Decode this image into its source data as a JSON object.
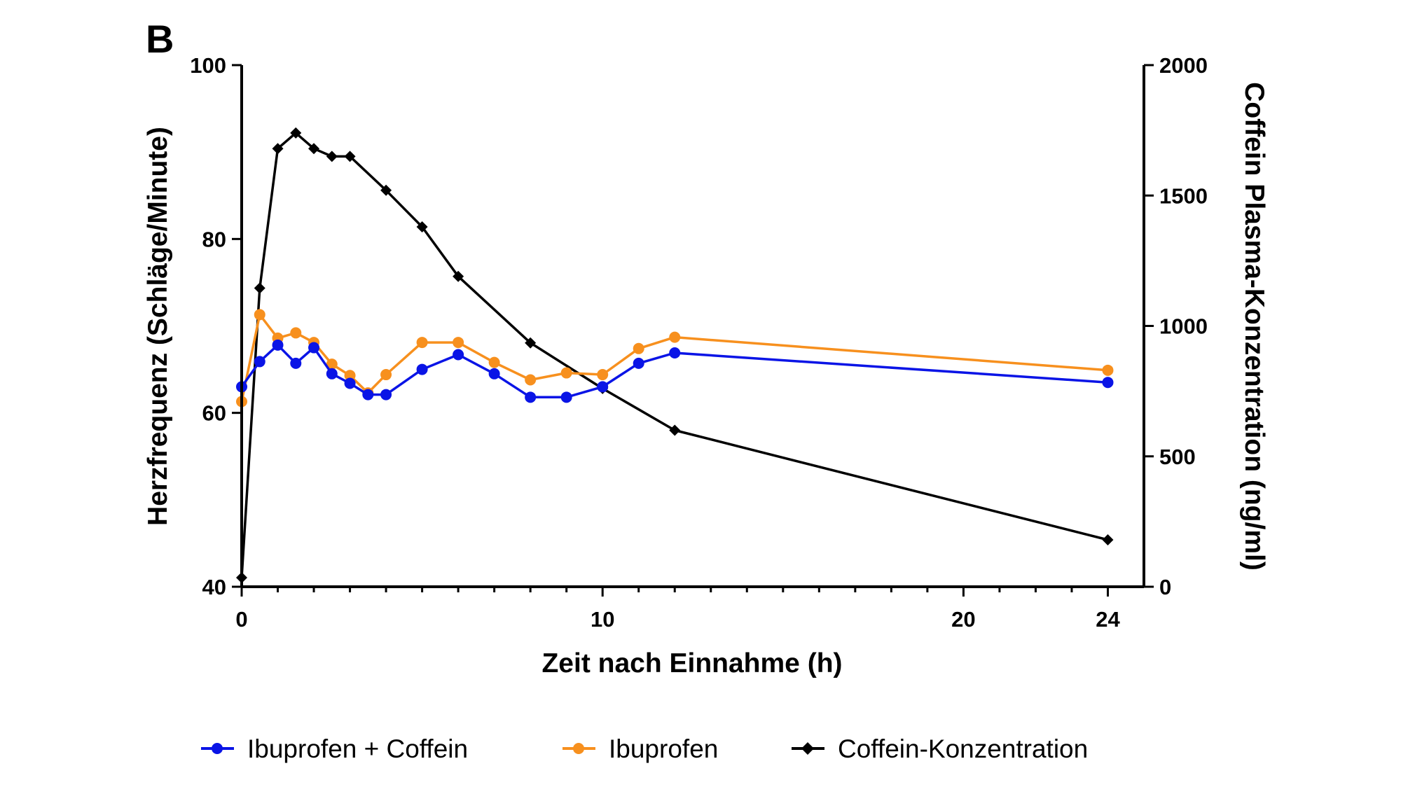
{
  "panel_label": "B",
  "legend": [
    {
      "label": "Ibuprofen + Coffein",
      "color": "#0a14e6",
      "marker": "circle"
    },
    {
      "label": "Ibuprofen",
      "color": "#f7901e",
      "marker": "circle"
    },
    {
      "label": "Coffein-Konzentration",
      "color": "#000000",
      "marker": "diamond"
    }
  ],
  "chart_data": {
    "type": "line",
    "xlabel": "Zeit nach Einnahme (h)",
    "ylabel_left": "Herzfrequenz (Schläge/Minute)",
    "ylabel_right": "Coffein Plasma-Konzentration (ng/ml)",
    "xlim": [
      0,
      25
    ],
    "ylim_left": [
      40,
      100
    ],
    "ylim_right": [
      0,
      2000
    ],
    "x_ticks": [
      0,
      10,
      20,
      24
    ],
    "x_tick_labels": [
      "0",
      "10",
      "20",
      "24"
    ],
    "y_left_ticks": [
      40,
      60,
      80,
      100
    ],
    "y_right_ticks": [
      0,
      500,
      1000,
      1500,
      2000
    ],
    "grid": false,
    "legend_position": "bottom",
    "series": [
      {
        "name": "Ibuprofen + Coffein",
        "axis": "left",
        "color": "#0a14e6",
        "marker": "circle",
        "x": [
          0,
          0.5,
          1,
          1.5,
          2,
          2.5,
          3,
          3.5,
          4,
          5,
          6,
          7,
          8,
          9,
          10,
          11,
          12,
          24
        ],
        "y": [
          63.0,
          65.9,
          67.8,
          65.7,
          67.5,
          64.5,
          63.4,
          62.1,
          62.1,
          65.0,
          66.7,
          64.5,
          61.8,
          61.8,
          63.0,
          65.7,
          66.9,
          63.5
        ]
      },
      {
        "name": "Ibuprofen",
        "axis": "left",
        "color": "#f7901e",
        "marker": "circle",
        "x": [
          0,
          0.5,
          1,
          1.5,
          2,
          2.5,
          3,
          3.5,
          4,
          5,
          6,
          7,
          8,
          9,
          10,
          11,
          12,
          24
        ],
        "y": [
          61.3,
          71.3,
          68.6,
          69.2,
          68.1,
          65.6,
          64.3,
          62.3,
          64.4,
          68.1,
          68.1,
          65.8,
          63.8,
          64.6,
          64.4,
          67.4,
          68.7,
          64.9
        ]
      },
      {
        "name": "Coffein-Konzentration",
        "axis": "right",
        "color": "#000000",
        "marker": "diamond",
        "x": [
          0,
          0.5,
          1,
          1.5,
          2,
          2.5,
          3,
          4,
          5,
          6,
          8,
          10,
          12,
          24
        ],
        "y": [
          35,
          1145,
          1680,
          1740,
          1680,
          1650,
          1650,
          1520,
          1380,
          1190,
          935,
          760,
          600,
          180
        ]
      }
    ]
  }
}
